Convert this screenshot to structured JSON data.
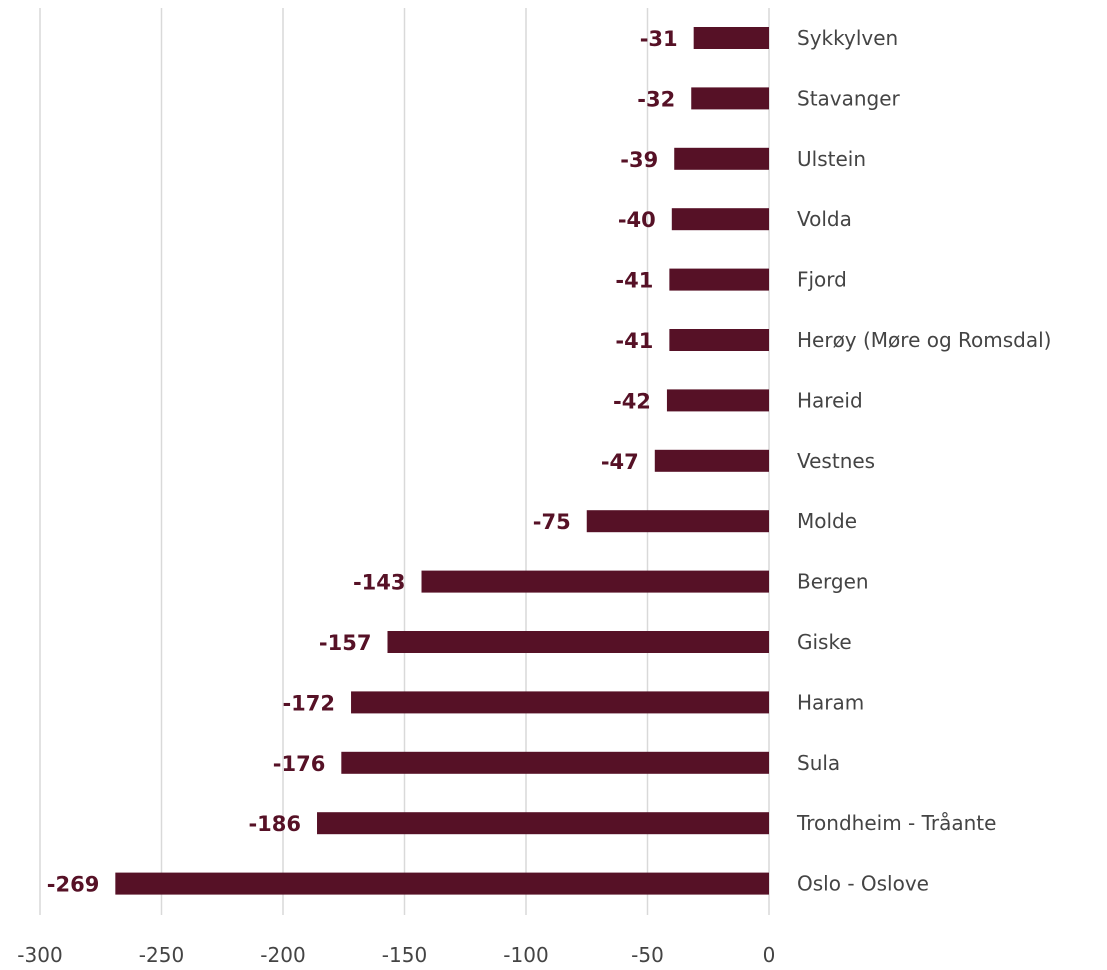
{
  "colors": {
    "bar": "#561126",
    "value_label": "#561126",
    "category_label": "#444444",
    "tick_label": "#444444",
    "grid": "#d9d9d9"
  },
  "chart_data": {
    "type": "bar",
    "orientation": "horizontal",
    "categories": [
      "Sykkylven",
      "Stavanger",
      "Ulstein",
      "Volda",
      "Fjord",
      "Herøy (Møre og Romsdal)",
      "Hareid",
      "Vestnes",
      "Molde",
      "Bergen",
      "Giske",
      "Haram",
      "Sula",
      "Trondheim - Tråante",
      "Oslo - Oslove"
    ],
    "values": [
      -31,
      -32,
      -39,
      -40,
      -41,
      -41,
      -42,
      -47,
      -75,
      -143,
      -157,
      -172,
      -176,
      -186,
      -269
    ],
    "value_labels": [
      "-31",
      "-32",
      "-39",
      "-40",
      "-41",
      "-41",
      "-42",
      "-47",
      "-75",
      "-143",
      "-157",
      "-172",
      "-176",
      "-186",
      "-269"
    ],
    "xlim": [
      -300,
      0
    ],
    "xticks": [
      -300,
      -250,
      -200,
      -150,
      -100,
      -50,
      0
    ],
    "xtick_labels": [
      "-300",
      "-250",
      "-200",
      "-150",
      "-100",
      "-50",
      "0"
    ],
    "title": "",
    "xlabel": "",
    "ylabel": "",
    "grid": "vertical",
    "legend": "none",
    "category_labels_position": "right"
  }
}
